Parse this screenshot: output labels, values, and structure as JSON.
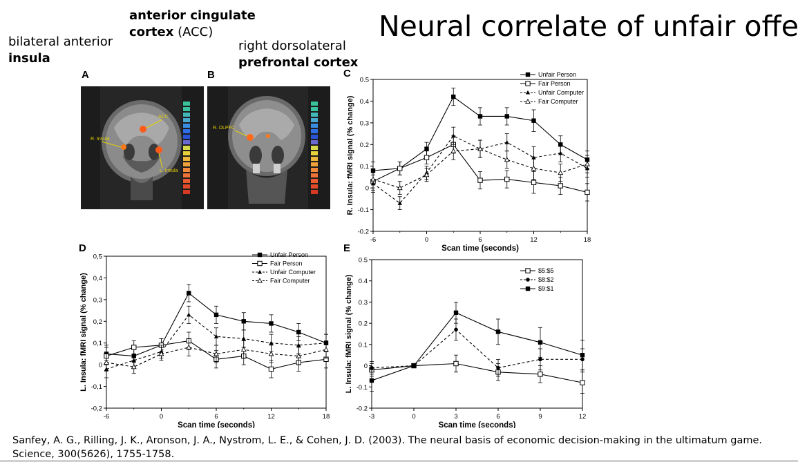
{
  "slide": {
    "title": "Neural correlate of unfair offer",
    "label_insula_line1": "bilateral anterior",
    "label_insula_line2": "insula",
    "label_acc_line1": "anterior cingulate",
    "label_acc_bold": "cortex",
    "label_acc_rest": " (ACC)",
    "label_dlpfc_line1": "right dorsolateral",
    "label_dlpfc_line2": "prefrontal cortex",
    "citation_line1": "Sanfey, A. G., Rilling, J. K., Aronson, J. A., Nystrom, L. E., & Cohen, J. D. (2003). The neural basis of economic decision-making in the ultimatum game.",
    "citation_line2": "Science, 300(5626), 1755-1758."
  },
  "figure": {
    "panel_a": {
      "letter": "A",
      "annotations": [
        "ACC",
        "R. Insula",
        "L. Insula"
      ]
    },
    "panel_b": {
      "letter": "B",
      "annotations": [
        "R. DLPFC"
      ]
    }
  },
  "chart_data": [
    {
      "panel": "C",
      "type": "line",
      "xlabel": "Scan time (seconds)",
      "ylabel": "R. Insula: fMRI signal (% change)",
      "xlim": [
        -6,
        18
      ],
      "ylim": [
        -0.2,
        0.5
      ],
      "xticks": [
        "-6",
        "0",
        "6",
        "12",
        "18"
      ],
      "yticks": [
        "-0.2",
        "-0.1",
        "0",
        "0.1",
        "0.2",
        "0.3",
        "0.4",
        "0.5"
      ],
      "x": [
        -6,
        -3,
        0,
        3,
        6,
        9,
        12,
        15,
        18
      ],
      "legend_position": "top-right",
      "series": [
        {
          "name": "Unfair Person",
          "values": [
            0.08,
            0.09,
            0.18,
            0.42,
            0.33,
            0.33,
            0.31,
            0.2,
            0.13
          ],
          "error": [
            0.04,
            0.03,
            0.03,
            0.04,
            0.04,
            0.04,
            0.05,
            0.04,
            0.04
          ],
          "style": "solid",
          "marker": "filled-square"
        },
        {
          "name": "Fair Person",
          "values": [
            0.03,
            0.09,
            0.14,
            0.2,
            0.035,
            0.04,
            0.025,
            0.01,
            -0.02
          ],
          "error": [
            0.04,
            0.03,
            0.03,
            0.04,
            0.04,
            0.04,
            0.05,
            0.04,
            0.04
          ],
          "style": "solid",
          "marker": "open-square"
        },
        {
          "name": "Unfair Computer",
          "values": [
            0.02,
            -0.07,
            0.07,
            0.24,
            0.18,
            0.21,
            0.14,
            0.16,
            0.09
          ],
          "error": [
            0.04,
            0.03,
            0.03,
            0.04,
            0.04,
            0.04,
            0.05,
            0.04,
            0.04
          ],
          "style": "dashed",
          "marker": "filled-triangle"
        },
        {
          "name": "Fair Computer",
          "values": [
            0.04,
            0.0,
            0.06,
            0.17,
            0.18,
            0.13,
            0.09,
            0.07,
            0.11
          ],
          "error": [
            0.04,
            0.03,
            0.03,
            0.04,
            0.04,
            0.04,
            0.05,
            0.04,
            0.04
          ],
          "style": "dashed",
          "marker": "open-triangle"
        }
      ]
    },
    {
      "panel": "D",
      "type": "line",
      "xlabel": "Scan time (seconds)",
      "ylabel": "L. Insula: fMRI signal (% change)",
      "xlim": [
        -6,
        18
      ],
      "ylim": [
        -0.2,
        0.5
      ],
      "xticks": [
        "-6",
        "0",
        "6",
        "12",
        "18"
      ],
      "yticks": [
        "-0,2",
        "-0,1",
        "0",
        "0,1",
        "0,2",
        "0,3",
        "0,4",
        "0,5"
      ],
      "x": [
        -6,
        -3,
        0,
        3,
        6,
        9,
        12,
        15,
        18
      ],
      "legend_position": "top-right",
      "series": [
        {
          "name": "Unfair Person",
          "values": [
            0.05,
            0.04,
            0.09,
            0.33,
            0.23,
            0.2,
            0.19,
            0.15,
            0.1
          ],
          "error": [
            0.04,
            0.03,
            0.03,
            0.04,
            0.04,
            0.04,
            0.04,
            0.04,
            0.04
          ],
          "style": "solid",
          "marker": "filled-square"
        },
        {
          "name": "Fair Person",
          "values": [
            0.04,
            0.08,
            0.09,
            0.11,
            0.025,
            0.04,
            -0.02,
            0.01,
            0.025
          ],
          "error": [
            0.04,
            0.03,
            0.03,
            0.04,
            0.04,
            0.04,
            0.04,
            0.04,
            0.04
          ],
          "style": "solid",
          "marker": "open-square"
        },
        {
          "name": "Unfair Computer",
          "values": [
            -0.02,
            0.02,
            0.06,
            0.23,
            0.13,
            0.12,
            0.1,
            0.09,
            0.1
          ],
          "error": [
            0.04,
            0.03,
            0.03,
            0.04,
            0.04,
            0.04,
            0.04,
            0.04,
            0.04
          ],
          "style": "dashed",
          "marker": "filled-triangle"
        },
        {
          "name": "Fair Computer",
          "values": [
            0.01,
            -0.01,
            0.05,
            0.08,
            0.05,
            0.07,
            0.05,
            0.04,
            0.07
          ],
          "error": [
            0.04,
            0.03,
            0.03,
            0.04,
            0.04,
            0.04,
            0.04,
            0.04,
            0.04
          ],
          "style": "dashed",
          "marker": "open-triangle"
        }
      ]
    },
    {
      "panel": "E",
      "type": "line",
      "xlabel": "Scan time (seconds)",
      "ylabel": "L. Insula: fMRI signal (% change)",
      "xlim": [
        -3,
        12
      ],
      "ylim": [
        -0.2,
        0.5
      ],
      "xticks": [
        "-3",
        "0",
        "3",
        "6",
        "9",
        "12"
      ],
      "yticks": [
        "-0.2",
        "-0.1",
        "0",
        "0.1",
        "0.2",
        "0.3",
        "0.4",
        "0.5"
      ],
      "x": [
        -3,
        0,
        3,
        6,
        9,
        12
      ],
      "legend_position": "top-right",
      "series": [
        {
          "name": "$5:$5",
          "values": [
            -0.02,
            0.0,
            0.01,
            -0.03,
            -0.04,
            -0.08
          ],
          "error": [
            0.03,
            0.0,
            0.04,
            0.04,
            0.04,
            0.05
          ],
          "style": "solid",
          "marker": "open-square"
        },
        {
          "name": "$8:$2",
          "values": [
            -0.01,
            0.0,
            0.17,
            -0.01,
            0.03,
            0.03
          ],
          "error": [
            0.03,
            0.0,
            0.05,
            0.04,
            0.05,
            0.05
          ],
          "style": "dashed",
          "marker": "filled-circle"
        },
        {
          "name": "$9:$1",
          "values": [
            -0.07,
            0.0,
            0.25,
            0.16,
            0.11,
            0.05
          ],
          "error": [
            0.05,
            0.0,
            0.05,
            0.06,
            0.07,
            0.07
          ],
          "style": "solid",
          "marker": "filled-square"
        }
      ]
    }
  ]
}
